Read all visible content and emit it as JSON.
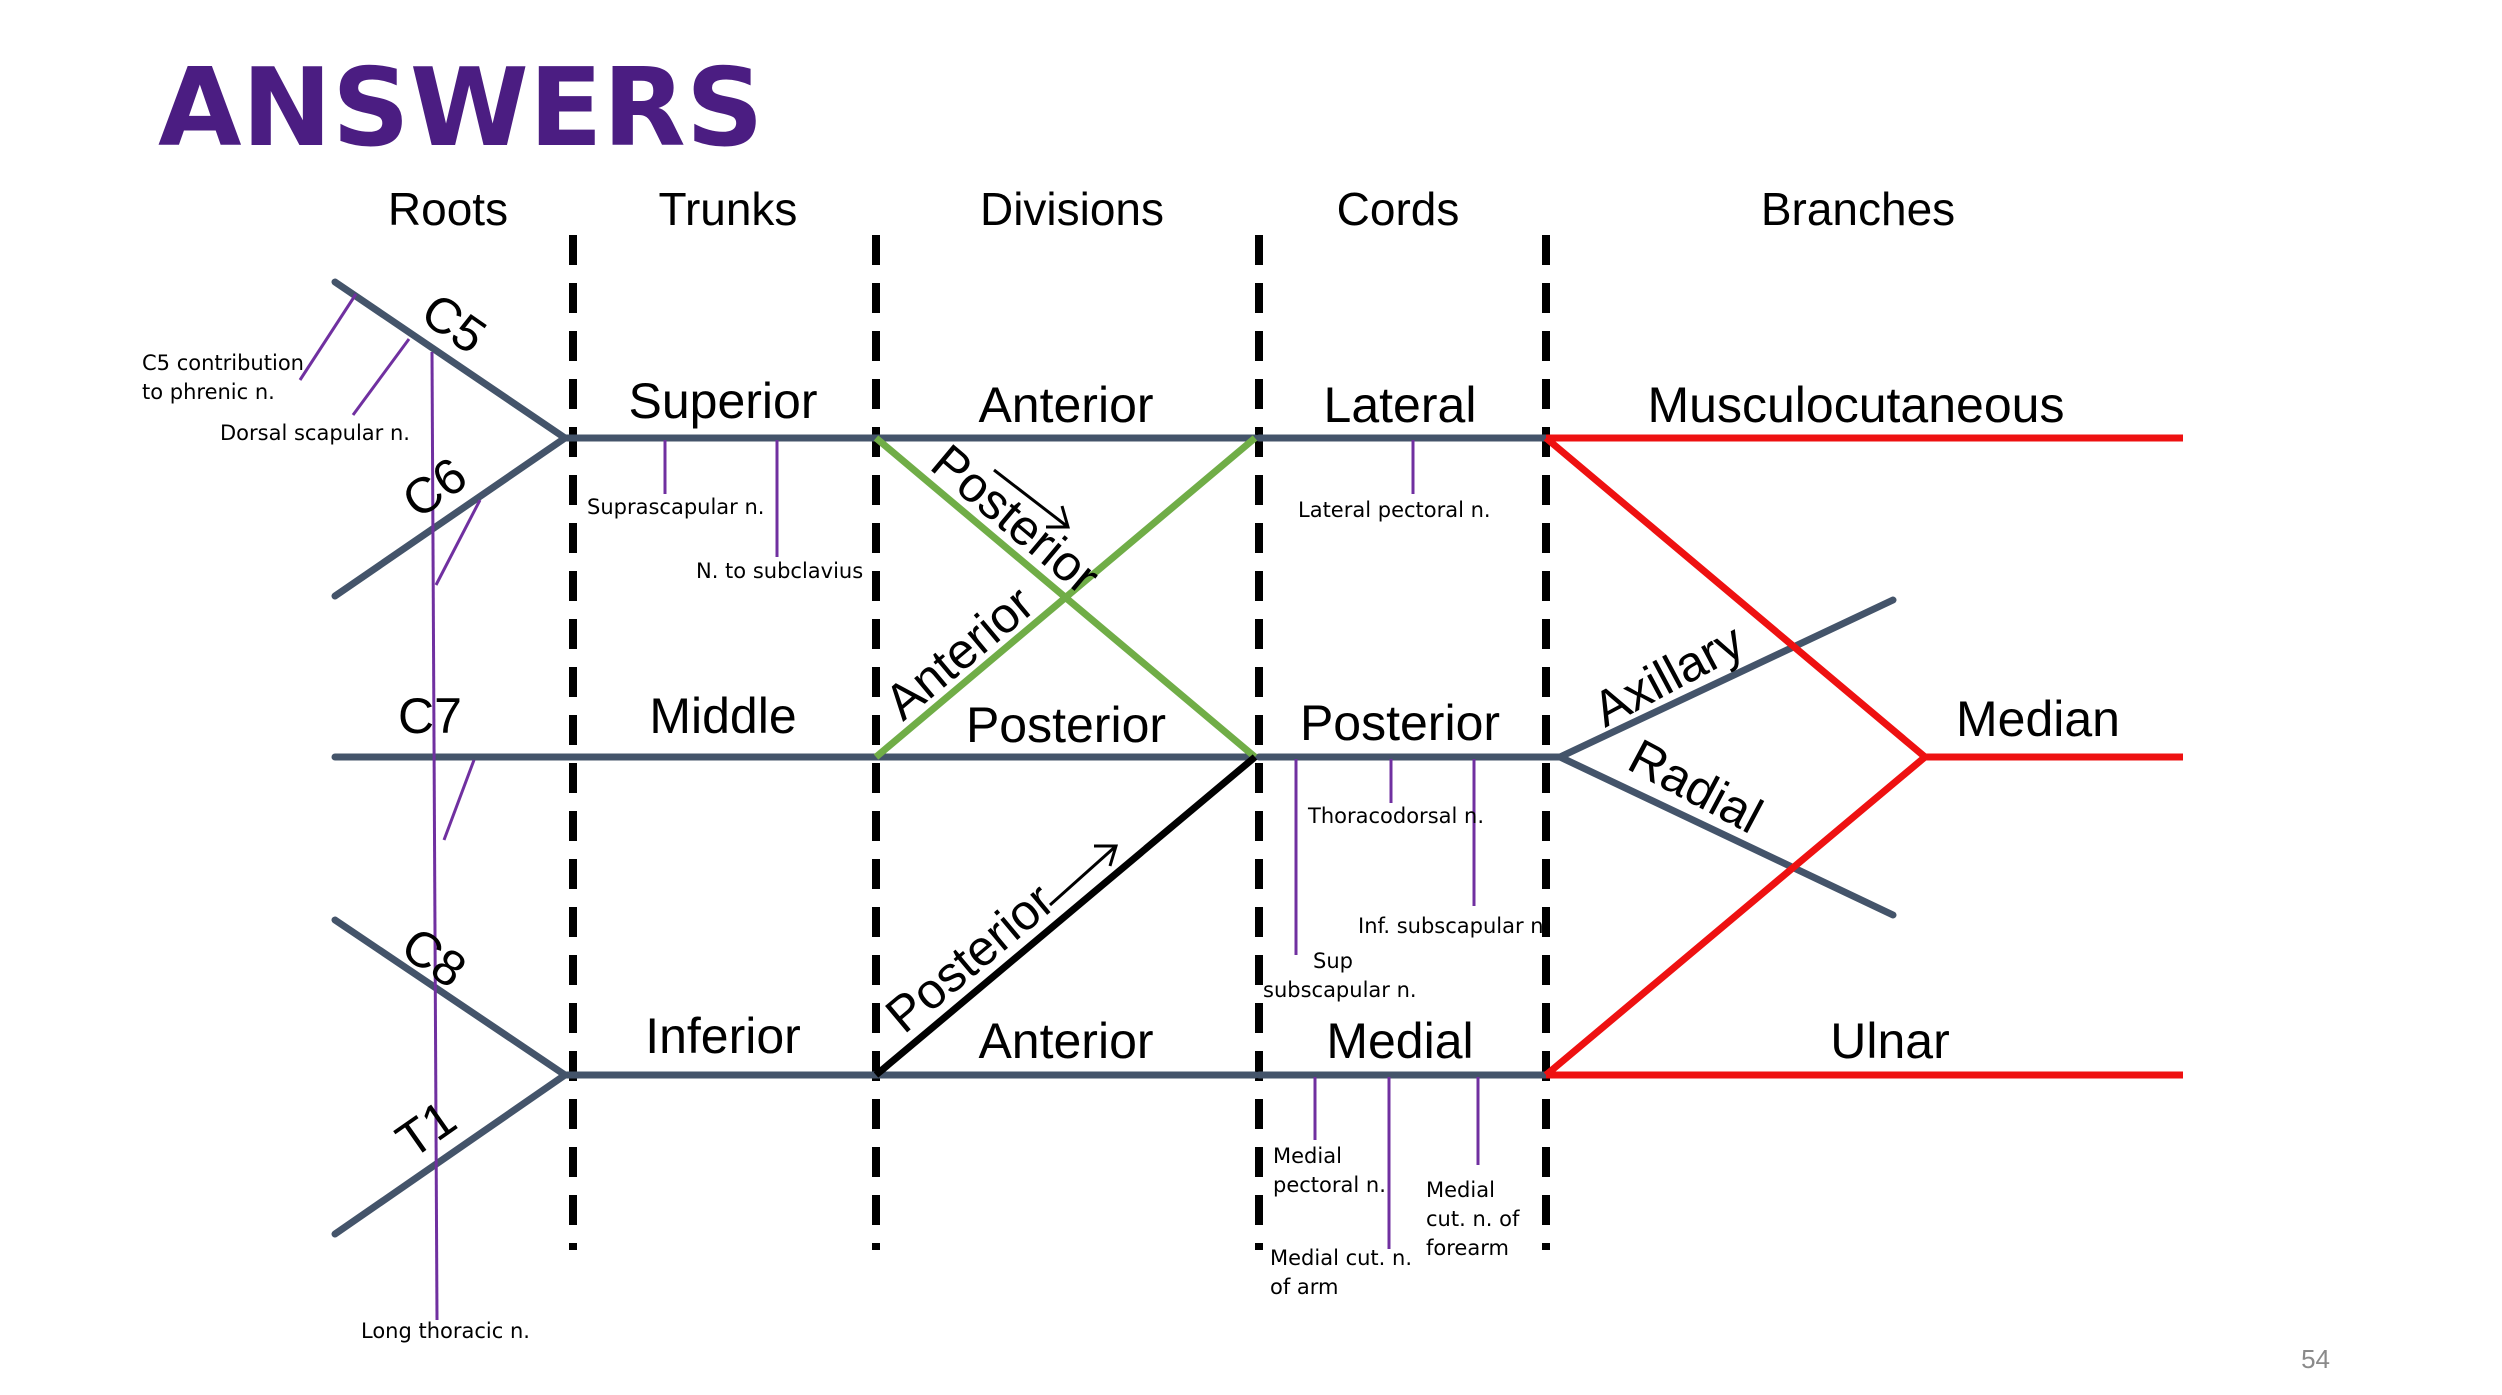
{
  "title": "ANSWERS",
  "page_number": "54",
  "columns": [
    "Roots",
    "Trunks",
    "Divisions",
    "Cords",
    "Branches"
  ],
  "roots": {
    "c5": "C5",
    "c6": "C6",
    "c7": "C7",
    "c8": "C8",
    "t1": "T1"
  },
  "trunks": {
    "superior": "Superior",
    "middle": "Middle",
    "inferior": "Inferior"
  },
  "divisions": {
    "anterior_top": "Anterior",
    "posterior_diag_top": "Posterior",
    "anterior_diag": "Anterior",
    "posterior_mid": "Posterior",
    "posterior_diag_low": "Posterior",
    "anterior_bottom": "Anterior"
  },
  "cords": {
    "lateral": "Lateral",
    "posterior": "Posterior",
    "medial": "Medial"
  },
  "branches": {
    "musculocutaneous": "Musculocutaneous",
    "axillary": "Axillary",
    "radial": "Radial",
    "median": "Median",
    "ulnar": "Ulnar"
  },
  "small_nerves": {
    "phrenic_1": "C5 contribution",
    "phrenic_2": "to phrenic n.",
    "dorsal_scapular": "Dorsal scapular n.",
    "suprascapular": "Suprascapular n.",
    "subclavius": "N. to subclavius",
    "lateral_pectoral": "Lateral pectoral n.",
    "thoracodorsal": "Thoracodorsal n.",
    "inf_subscapular": "Inf. subscapular n.",
    "sup_subscapular_1": "Sup",
    "sup_subscapular_2": "subscapular n.",
    "medial_pectoral_1": "Medial",
    "medial_pectoral_2": "pectoral n.",
    "medial_cut_arm_1": "Medial cut. n.",
    "medial_cut_arm_2": "of arm",
    "medial_cut_forearm_1": "Medial",
    "medial_cut_forearm_2": "cut. n. of",
    "medial_cut_forearm_3": "forearm",
    "long_thoracic": "Long thoracic n."
  },
  "colors": {
    "title": "#4b1d82",
    "nerve": "#44546a",
    "branch": "#ee1111",
    "division": "#70ad47",
    "posterior_division": "#000000",
    "small_nerve": "#7030a0"
  }
}
